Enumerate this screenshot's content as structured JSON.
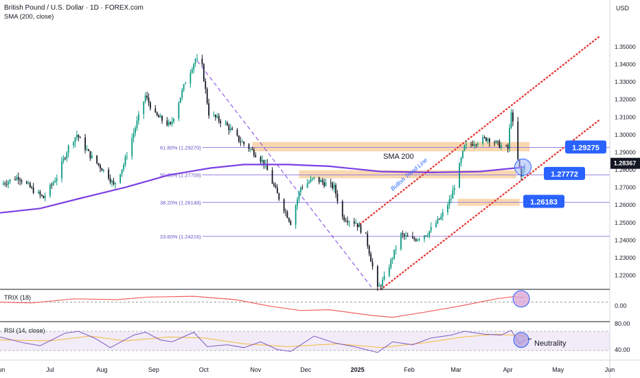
{
  "header": {
    "title": "British Pound / U.S. Dollar · 1D · FOREX.com",
    "indicator": "SMA (200, close)",
    "currency": "USD"
  },
  "colors": {
    "bull": "#089981",
    "bear": "#131722",
    "sma": "#7b3fe4",
    "fib": "#9c7fe0",
    "zone": "#f7c78f",
    "trend_dot": "#e53935",
    "trix": "#f06060",
    "rsi": "#7e57c2",
    "rsi_ma": "#f5b83d",
    "badge": "#2962ff",
    "price_badge": "#131722"
  },
  "chart_data": {
    "type": "candlestick",
    "title": "British Pound / U.S. Dollar · 1D · FOREX.com",
    "y_axis": {
      "range": [
        1.212,
        1.3625
      ],
      "ticks": [
        "1.35000",
        "1.34000",
        "1.33000",
        "1.32000",
        "1.31000",
        "1.30000",
        "1.29000",
        "1.28000",
        "1.27000",
        "1.26000",
        "1.25000",
        "1.24000",
        "1.23000",
        "1.22000"
      ]
    },
    "x_axis": {
      "range": [
        "2024-06-01",
        "2025-06-01"
      ],
      "ticks": [
        {
          "label": "Jun",
          "date": "2024-06-01"
        },
        {
          "label": "Jul",
          "date": "2024-07-01"
        },
        {
          "label": "Aug",
          "date": "2024-08-01"
        },
        {
          "label": "Sep",
          "date": "2024-09-01"
        },
        {
          "label": "Oct",
          "date": "2024-10-01"
        },
        {
          "label": "Nov",
          "date": "2024-11-01"
        },
        {
          "label": "Dec",
          "date": "2024-12-01"
        },
        {
          "label": "2025",
          "date": "2025-01-01",
          "bold": true
        },
        {
          "label": "Feb",
          "date": "2025-02-01"
        },
        {
          "label": "Mar",
          "date": "2025-03-01"
        },
        {
          "label": "Apr",
          "date": "2025-04-01"
        },
        {
          "label": "May",
          "date": "2025-05-01"
        },
        {
          "label": "Jun",
          "date": "2025-06-01"
        }
      ]
    },
    "price_path": [
      [
        "2024-06-01",
        1.2715
      ],
      [
        "2024-06-12",
        1.276
      ],
      [
        "2024-06-20",
        1.269
      ],
      [
        "2024-06-27",
        1.264
      ],
      [
        "2024-07-05",
        1.276
      ],
      [
        "2024-07-12",
        1.293
      ],
      [
        "2024-07-17",
        1.3
      ],
      [
        "2024-07-25",
        1.288
      ],
      [
        "2024-08-05",
        1.2765
      ],
      [
        "2024-08-08",
        1.271
      ],
      [
        "2024-08-14",
        1.283
      ],
      [
        "2024-08-21",
        1.304
      ],
      [
        "2024-08-27",
        1.322
      ],
      [
        "2024-09-02",
        1.311
      ],
      [
        "2024-09-11",
        1.305
      ],
      [
        "2024-09-20",
        1.33
      ],
      [
        "2024-09-26",
        1.343
      ],
      [
        "2024-09-30",
        1.3385
      ],
      [
        "2024-10-04",
        1.312
      ],
      [
        "2024-10-14",
        1.306
      ],
      [
        "2024-10-22",
        1.297
      ],
      [
        "2024-10-31",
        1.29
      ],
      [
        "2024-11-06",
        1.284
      ],
      [
        "2024-11-14",
        1.266
      ],
      [
        "2024-11-22",
        1.25
      ],
      [
        "2024-11-28",
        1.27
      ],
      [
        "2024-12-06",
        1.275
      ],
      [
        "2024-12-18",
        1.27
      ],
      [
        "2024-12-23",
        1.253
      ],
      [
        "2024-12-31",
        1.25
      ],
      [
        "2025-01-06",
        1.242
      ],
      [
        "2025-01-13",
        1.212
      ],
      [
        "2025-01-17",
        1.218
      ],
      [
        "2025-01-27",
        1.243
      ],
      [
        "2025-02-03",
        1.24
      ],
      [
        "2025-02-12",
        1.244
      ],
      [
        "2025-02-20",
        1.253
      ],
      [
        "2025-02-26",
        1.264
      ],
      [
        "2025-03-03",
        1.282
      ],
      [
        "2025-03-06",
        1.293
      ],
      [
        "2025-03-13",
        1.296
      ],
      [
        "2025-03-20",
        1.298
      ],
      [
        "2025-03-27",
        1.294
      ],
      [
        "2025-04-01",
        1.292
      ],
      [
        "2025-04-03",
        1.314
      ],
      [
        "2025-04-06",
        1.29
      ],
      [
        "2025-04-09",
        1.276
      ],
      [
        "2025-04-11",
        1.2837
      ]
    ],
    "sma200_path": [
      [
        "2024-06-01",
        1.2555
      ],
      [
        "2024-06-25",
        1.258
      ],
      [
        "2024-07-20",
        1.264
      ],
      [
        "2024-08-15",
        1.27
      ],
      [
        "2024-09-10",
        1.277
      ],
      [
        "2024-10-05",
        1.281
      ],
      [
        "2024-10-25",
        1.283
      ],
      [
        "2024-11-20",
        1.283
      ],
      [
        "2024-12-15",
        1.282
      ],
      [
        "2025-01-15",
        1.279
      ],
      [
        "2025-02-15",
        1.2785
      ],
      [
        "2025-03-15",
        1.279
      ],
      [
        "2025-04-11",
        1.2815
      ]
    ],
    "last_price": 1.28367,
    "last_price_label": "1.28367",
    "levels": [
      {
        "label": "1.29275",
        "value": 1.29275
      },
      {
        "label": "1.27772",
        "value": 1.27772
      },
      {
        "label": "1.26183",
        "value": 1.26183
      }
    ],
    "fib_levels": [
      {
        "label": "61.80% (1.29270)",
        "value": 1.2927,
        "from": "2024-09-26"
      },
      {
        "label": "50.00% (1.27709)",
        "value": 1.27709,
        "from": "2024-09-26"
      },
      {
        "label": "38.20% (1.26148)",
        "value": 1.26148,
        "from": "2024-09-26"
      },
      {
        "label": "23.60% (1.24216)",
        "value": 1.24216,
        "from": "2024-09-26"
      }
    ],
    "zones": [
      {
        "from": "2024-10-30",
        "to": "2025-04-14",
        "low": 1.2905,
        "high": 1.2958
      },
      {
        "from": "2024-11-27",
        "to": "2025-04-06",
        "low": 1.2752,
        "high": 1.2797
      },
      {
        "from": "2025-03-02",
        "to": "2025-04-08",
        "low": 1.2595,
        "high": 1.2635
      }
    ],
    "trend_lines": [
      {
        "label": "Bullish Trend Line",
        "style": "dotted",
        "from": [
          "2025-01-01",
          1.248
        ],
        "to": [
          "2025-05-26",
          1.356
        ]
      },
      {
        "style": "dotted",
        "from": [
          "2025-01-15",
          1.212
        ],
        "to": [
          "2025-05-26",
          1.3085
        ]
      },
      {
        "style": "dashed",
        "from": [
          "2024-09-27",
          1.342
        ],
        "to": [
          "2025-01-10",
          1.2125
        ]
      }
    ],
    "annotations": {
      "sma_label": "SMA 200",
      "trend_label": "Bullish Trend Line"
    },
    "trix": {
      "title": "TRIX (18)",
      "tick": "0.00",
      "zero": 0,
      "range": [
        -0.2,
        0.12
      ],
      "path": [
        [
          "2024-06-01",
          0.0
        ],
        [
          "2024-06-20",
          -0.01
        ],
        [
          "2024-07-15",
          0.04
        ],
        [
          "2024-08-10",
          0.03
        ],
        [
          "2024-08-28",
          0.06
        ],
        [
          "2024-09-25",
          0.07
        ],
        [
          "2024-10-20",
          0.03
        ],
        [
          "2024-11-10",
          -0.05
        ],
        [
          "2024-11-28",
          -0.1
        ],
        [
          "2024-12-15",
          -0.09
        ],
        [
          "2025-01-10",
          -0.16
        ],
        [
          "2025-01-22",
          -0.18
        ],
        [
          "2025-02-10",
          -0.12
        ],
        [
          "2025-03-05",
          -0.04
        ],
        [
          "2025-03-25",
          0.04
        ],
        [
          "2025-04-04",
          0.065
        ],
        [
          "2025-04-11",
          0.055
        ]
      ]
    },
    "rsi": {
      "title": "RSI (14, close)",
      "ticks": [
        "80.00",
        "40.00"
      ],
      "band": [
        30,
        70
      ],
      "range": [
        10,
        90
      ],
      "annotation": "Neutrality",
      "rsi_path": [
        [
          "2024-06-01",
          58
        ],
        [
          "2024-06-15",
          46
        ],
        [
          "2024-06-25",
          40
        ],
        [
          "2024-07-10",
          66
        ],
        [
          "2024-07-18",
          70
        ],
        [
          "2024-07-28",
          55
        ],
        [
          "2024-08-06",
          36
        ],
        [
          "2024-08-20",
          62
        ],
        [
          "2024-08-27",
          68
        ],
        [
          "2024-09-05",
          52
        ],
        [
          "2024-09-12",
          48
        ],
        [
          "2024-09-25",
          68
        ],
        [
          "2024-10-03",
          38
        ],
        [
          "2024-10-15",
          42
        ],
        [
          "2024-10-25",
          36
        ],
        [
          "2024-11-04",
          48
        ],
        [
          "2024-11-14",
          32
        ],
        [
          "2024-11-22",
          28
        ],
        [
          "2024-12-06",
          60
        ],
        [
          "2024-12-18",
          46
        ],
        [
          "2024-12-30",
          38
        ],
        [
          "2025-01-13",
          26
        ],
        [
          "2025-01-22",
          48
        ],
        [
          "2025-02-03",
          42
        ],
        [
          "2025-02-14",
          56
        ],
        [
          "2025-02-26",
          62
        ],
        [
          "2025-03-06",
          70
        ],
        [
          "2025-03-18",
          64
        ],
        [
          "2025-03-28",
          62
        ],
        [
          "2025-04-03",
          72
        ],
        [
          "2025-04-08",
          44
        ],
        [
          "2025-04-11",
          52
        ]
      ],
      "ma_path": [
        [
          "2024-06-01",
          52
        ],
        [
          "2024-07-01",
          50
        ],
        [
          "2024-07-25",
          60
        ],
        [
          "2024-08-15",
          50
        ],
        [
          "2024-09-10",
          58
        ],
        [
          "2024-10-01",
          56
        ],
        [
          "2024-10-25",
          44
        ],
        [
          "2024-11-20",
          38
        ],
        [
          "2024-12-20",
          44
        ],
        [
          "2025-01-15",
          36
        ],
        [
          "2025-02-10",
          46
        ],
        [
          "2025-03-05",
          58
        ],
        [
          "2025-03-25",
          64
        ],
        [
          "2025-04-11",
          60
        ]
      ]
    }
  }
}
